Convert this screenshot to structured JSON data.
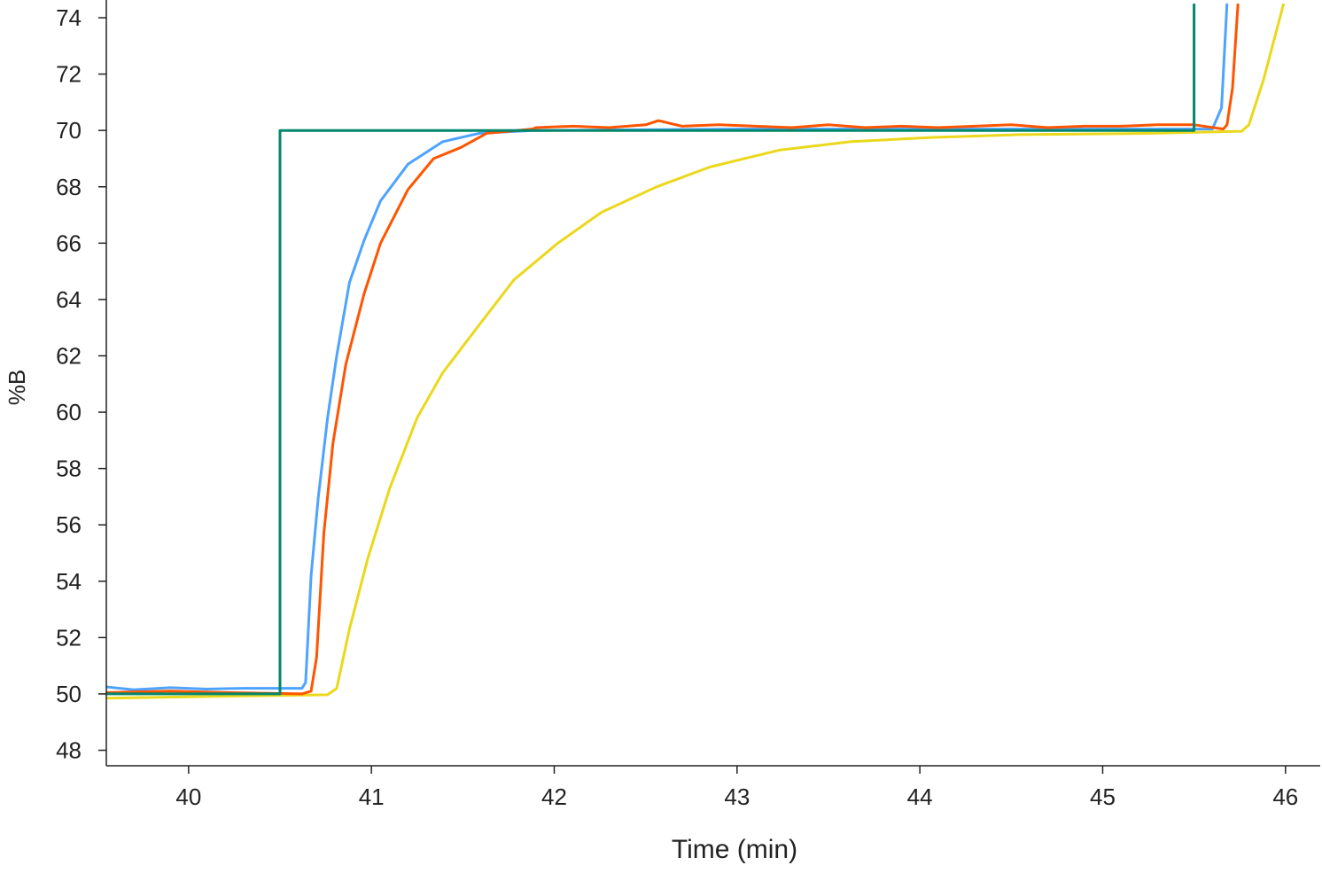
{
  "chart_data": {
    "type": "line",
    "title": "",
    "xlabel": "Time (min)",
    "ylabel": "%B",
    "xlim": [
      39.55,
      46.19
    ],
    "ylim": [
      47.45,
      74.63
    ],
    "xticks": [
      "40",
      "41",
      "42",
      "43",
      "44",
      "45",
      "46"
    ],
    "yticks": [
      "48",
      "50",
      "52",
      "54",
      "56",
      "58",
      "60",
      "62",
      "64",
      "66",
      "68",
      "70",
      "72",
      "74"
    ],
    "grid": false,
    "legend": "none",
    "series": [
      {
        "color": "#ebd81c",
        "points": [
          [
            39.55,
            49.85
          ],
          [
            40.2,
            49.92
          ],
          [
            40.76,
            49.97
          ],
          [
            40.81,
            50.2
          ],
          [
            40.88,
            52.3
          ],
          [
            40.98,
            54.8
          ],
          [
            41.1,
            57.3
          ],
          [
            41.25,
            59.8
          ],
          [
            41.39,
            61.4
          ],
          [
            41.59,
            63.1
          ],
          [
            41.78,
            64.7
          ],
          [
            42.02,
            66.0
          ],
          [
            42.26,
            67.1
          ],
          [
            42.56,
            68.0
          ],
          [
            42.85,
            68.7
          ],
          [
            43.23,
            69.3
          ],
          [
            43.62,
            69.6
          ],
          [
            44.06,
            69.75
          ],
          [
            44.54,
            69.85
          ],
          [
            45.27,
            69.9
          ],
          [
            45.76,
            69.97
          ],
          [
            45.8,
            70.2
          ],
          [
            45.88,
            71.8
          ],
          [
            45.99,
            74.5
          ]
        ]
      },
      {
        "color": "#4da3ff",
        "points": [
          [
            39.55,
            50.25
          ],
          [
            39.7,
            50.15
          ],
          [
            39.9,
            50.22
          ],
          [
            40.1,
            50.17
          ],
          [
            40.3,
            50.2
          ],
          [
            40.62,
            50.2
          ],
          [
            40.64,
            50.4
          ],
          [
            40.67,
            54.2
          ],
          [
            40.71,
            57.0
          ],
          [
            40.76,
            59.8
          ],
          [
            40.81,
            62.0
          ],
          [
            40.88,
            64.6
          ],
          [
            40.96,
            66.1
          ],
          [
            41.05,
            67.5
          ],
          [
            41.2,
            68.8
          ],
          [
            41.39,
            69.6
          ],
          [
            41.59,
            69.9
          ],
          [
            41.88,
            70.0
          ],
          [
            43.0,
            70.05
          ],
          [
            44.5,
            70.05
          ],
          [
            45.6,
            70.05
          ],
          [
            45.65,
            70.8
          ],
          [
            45.68,
            74.5
          ]
        ]
      },
      {
        "color": "#ff5500",
        "points": [
          [
            39.55,
            50.05
          ],
          [
            39.9,
            50.1
          ],
          [
            40.2,
            50.05
          ],
          [
            40.62,
            50.0
          ],
          [
            40.67,
            50.1
          ],
          [
            40.7,
            51.3
          ],
          [
            40.74,
            55.7
          ],
          [
            40.79,
            58.9
          ],
          [
            40.86,
            61.7
          ],
          [
            40.96,
            64.2
          ],
          [
            41.05,
            66.0
          ],
          [
            41.2,
            67.9
          ],
          [
            41.34,
            69.0
          ],
          [
            41.49,
            69.4
          ],
          [
            41.63,
            69.9
          ],
          [
            41.88,
            70.05
          ],
          [
            41.9,
            70.1
          ],
          [
            42.1,
            70.15
          ],
          [
            42.3,
            70.1
          ],
          [
            42.5,
            70.2
          ],
          [
            42.57,
            70.35
          ],
          [
            42.7,
            70.15
          ],
          [
            42.9,
            70.2
          ],
          [
            43.1,
            70.15
          ],
          [
            43.3,
            70.1
          ],
          [
            43.5,
            70.2
          ],
          [
            43.7,
            70.1
          ],
          [
            43.9,
            70.15
          ],
          [
            44.1,
            70.1
          ],
          [
            44.3,
            70.15
          ],
          [
            44.5,
            70.2
          ],
          [
            44.7,
            70.1
          ],
          [
            44.9,
            70.15
          ],
          [
            45.1,
            70.15
          ],
          [
            45.3,
            70.2
          ],
          [
            45.5,
            70.2
          ],
          [
            45.66,
            70.05
          ],
          [
            45.68,
            70.2
          ],
          [
            45.71,
            71.5
          ],
          [
            45.74,
            74.5
          ]
        ]
      },
      {
        "color": "#00876c",
        "points": [
          [
            39.55,
            50.0
          ],
          [
            40.5,
            50.0
          ],
          [
            40.5,
            70.0
          ],
          [
            45.5,
            70.0
          ],
          [
            45.5,
            74.5
          ]
        ]
      }
    ]
  }
}
